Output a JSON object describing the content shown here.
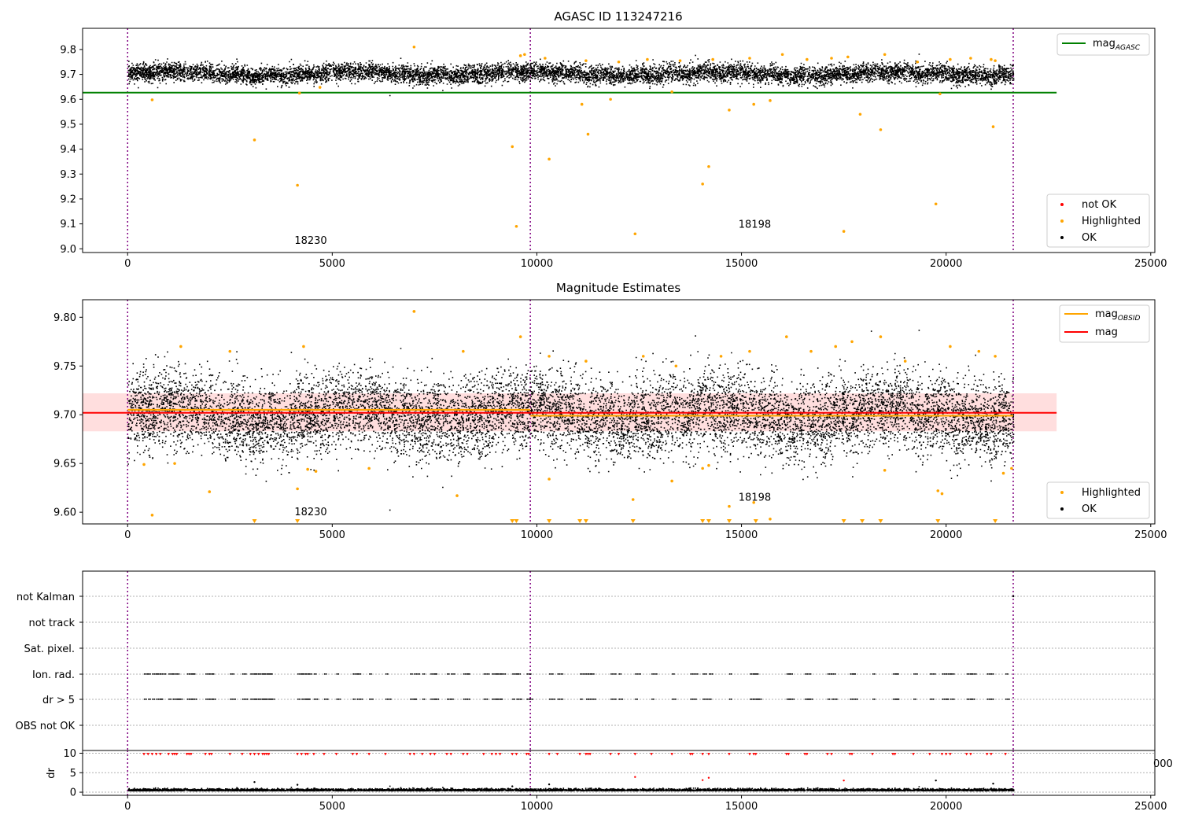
{
  "chart_data": [
    {
      "type": "scatter",
      "title": "AGASC ID 113247216",
      "xlabel": "",
      "ylabel": "",
      "xlim": [
        -1100,
        25100
      ],
      "ylim": [
        8.985,
        9.885
      ],
      "xticks": [
        0,
        5000,
        10000,
        15000,
        20000,
        25000
      ],
      "xtick_labels": [
        "0",
        "5000",
        "10000",
        "15000",
        "20000",
        "25000"
      ],
      "yticks": [
        9.0,
        9.1,
        9.2,
        9.3,
        9.4,
        9.5,
        9.6,
        9.7,
        9.8
      ],
      "ytick_labels": [
        "9.0",
        "9.1",
        "9.2",
        "9.3",
        "9.4",
        "9.5",
        "9.6",
        "9.7",
        "9.8"
      ],
      "obs_boundaries": [
        0,
        9840,
        21640
      ],
      "obsid_annotations": [
        {
          "x": 4500,
          "y": 9.02,
          "label": "18230"
        },
        {
          "x": 15350,
          "y": 9.085,
          "label": "18198"
        }
      ],
      "reference_lines": [
        {
          "label": "magAGASC",
          "y": 9.627,
          "color": "#008000"
        }
      ],
      "ok_band": {
        "x_start": 0,
        "x_end": 21640,
        "center": 9.705,
        "spread": 0.018,
        "color": "#000000"
      },
      "highlighted_points": {
        "color": "#ffa500",
        "x": [
          600,
          3100,
          4150,
          4200,
          4700,
          9400,
          10300,
          11100,
          11250,
          11800,
          12400,
          13300,
          14050,
          14200,
          14700,
          15300,
          15700,
          17500,
          17900,
          18400,
          19750,
          19850,
          21150,
          21200,
          7000,
          9500,
          9600,
          9700,
          10200,
          11200,
          12000,
          12700,
          13500,
          14300,
          15200,
          16000,
          16600,
          17200,
          17600,
          18500,
          19300,
          20100,
          20600,
          21100
        ],
        "y": [
          9.598,
          9.437,
          9.255,
          9.625,
          9.648,
          9.41,
          9.36,
          9.58,
          9.46,
          9.6,
          9.06,
          9.63,
          9.26,
          9.33,
          9.557,
          9.58,
          9.595,
          9.07,
          9.54,
          9.478,
          9.18,
          9.622,
          9.49,
          9.755,
          9.81,
          9.09,
          9.775,
          9.78,
          9.765,
          9.755,
          9.75,
          9.76,
          9.755,
          9.76,
          9.765,
          9.78,
          9.76,
          9.765,
          9.77,
          9.78,
          9.75,
          9.76,
          9.765,
          9.76
        ]
      },
      "legend": {
        "placement": "top-right",
        "entries": [
          {
            "label_main": "mag",
            "label_sub": "AGASC",
            "color": "#008000",
            "marker": "line"
          }
        ]
      },
      "legend2": {
        "placement": "lower-right",
        "entries": [
          {
            "label": "not OK",
            "color": "#ff0000",
            "marker": "dot"
          },
          {
            "label": "Highlighted",
            "color": "#ffa500",
            "marker": "dot"
          },
          {
            "label": "OK",
            "color": "#000000",
            "marker": "dot"
          }
        ]
      }
    },
    {
      "type": "scatter",
      "title": "Magnitude Estimates",
      "xlabel": "",
      "ylabel": "",
      "xlim": [
        -1100,
        25100
      ],
      "ylim": [
        9.588,
        9.818
      ],
      "xticks": [
        0,
        5000,
        10000,
        15000,
        20000,
        25000
      ],
      "xtick_labels": [
        "0",
        "5000",
        "10000",
        "15000",
        "20000",
        "25000"
      ],
      "yticks": [
        9.6,
        9.65,
        9.7,
        9.75,
        9.8
      ],
      "ytick_labels": [
        "9.60",
        "9.65",
        "9.70",
        "9.75",
        "9.80"
      ],
      "obs_boundaries": [
        0,
        9840,
        21640
      ],
      "obsid_annotations": [
        {
          "x": 4500,
          "y": 9.597,
          "label": "18230"
        },
        {
          "x": 15350,
          "y": 9.612,
          "label": "18198"
        }
      ],
      "mag_band": {
        "x_start": -1100,
        "x_end": 22700,
        "center": 9.702,
        "low": 9.683,
        "high": 9.722,
        "color": "#ff0000"
      },
      "obsid_mean_segments": [
        {
          "x_start": 0,
          "x_end": 9840,
          "y": 9.705
        },
        {
          "x_start": 9840,
          "x_end": 21640,
          "y": 9.699
        }
      ],
      "ok_band": {
        "x_start": 0,
        "x_end": 21640,
        "center": 9.7,
        "spread": 0.02,
        "color": "#000000"
      },
      "highlighted_points": {
        "color": "#ffa500",
        "x": [
          400,
          600,
          1150,
          2000,
          4150,
          4400,
          4600,
          5900,
          7000,
          8050,
          10300,
          12350,
          13300,
          14050,
          14200,
          14700,
          15300,
          15700,
          18500,
          19800,
          19900,
          21400,
          21600,
          1300,
          2500,
          4300,
          7000,
          8200,
          9600,
          10300,
          11200,
          12600,
          13400,
          14500,
          15200,
          16100,
          16700,
          17300,
          17700,
          18400,
          19000,
          20100,
          20800,
          21200
        ],
        "y": [
          9.649,
          9.597,
          9.65,
          9.621,
          9.624,
          9.644,
          9.642,
          9.645,
          9.806,
          9.617,
          9.634,
          9.613,
          9.632,
          9.645,
          9.648,
          9.606,
          9.61,
          9.593,
          9.643,
          9.622,
          9.619,
          9.64,
          9.645,
          9.77,
          9.765,
          9.77,
          9.806,
          9.765,
          9.78,
          9.76,
          9.755,
          9.76,
          9.75,
          9.76,
          9.765,
          9.78,
          9.765,
          9.77,
          9.775,
          9.78,
          9.755,
          9.77,
          9.765,
          9.76
        ]
      },
      "clipped_markers": {
        "color": "#ffa500",
        "x": [
          3100,
          4150,
          9400,
          9500,
          10300,
          11050,
          11200,
          12350,
          14050,
          14200,
          14700,
          15350,
          17500,
          17950,
          18400,
          19800,
          21200
        ]
      },
      "legend": {
        "placement": "top-right",
        "entries": [
          {
            "label_main": "mag",
            "label_sub": "OBSID",
            "color": "#ffa500",
            "marker": "line"
          },
          {
            "label_main": "mag",
            "label_sub": "",
            "color": "#ff0000",
            "marker": "line"
          }
        ]
      },
      "legend2": {
        "placement": "lower-right",
        "entries": [
          {
            "label": "Highlighted",
            "color": "#ffa500",
            "marker": "dot"
          },
          {
            "label": "OK",
            "color": "#000000",
            "marker": "dot"
          }
        ]
      }
    },
    {
      "type": "scatter",
      "title": "",
      "xlabel": "",
      "ylabel": "",
      "xlim": [
        -1100,
        25100
      ],
      "categories": [
        "not Kalman",
        "not track",
        "Sat. pixel.",
        "Ion. rad.",
        "dr > 5",
        "OBS not OK"
      ],
      "obs_boundaries": [
        0,
        9840,
        21640
      ],
      "flag_x": [
        400,
        500,
        600,
        700,
        800,
        1000,
        1100,
        1150,
        1200,
        1450,
        1500,
        1550,
        1900,
        2000,
        2050,
        2500,
        2800,
        3000,
        3100,
        3200,
        3300,
        3350,
        3400,
        3450,
        4150,
        4250,
        4350,
        4400,
        4550,
        4800,
        5100,
        5500,
        5600,
        5900,
        6300,
        6900,
        7000,
        7200,
        7400,
        7500,
        7800,
        7900,
        8200,
        8300,
        8700,
        8900,
        9000,
        9100,
        9400,
        9500,
        9750,
        9800,
        10300,
        10500,
        11050,
        11200,
        11250,
        11300,
        11800,
        12000,
        12400,
        12800,
        13300,
        13750,
        13800,
        14050,
        14200,
        14700,
        15200,
        15300,
        15350,
        16100,
        16150,
        16550,
        16600,
        17100,
        17200,
        17650,
        17700,
        18200,
        18700,
        18750,
        19200,
        19600,
        19900,
        20000,
        20100,
        20500,
        20600,
        21000,
        21100,
        21450
      ],
      "kalman_points": {
        "x": [
          21640
        ],
        "label": "not Kalman"
      },
      "extra_tick": "000",
      "sub_panel": {
        "ylabel": "dr",
        "ylim": [
          -0.8,
          10.7
        ],
        "yticks": [
          0,
          5,
          10
        ],
        "ytick_labels": [
          "0",
          "5",
          "10"
        ],
        "xticks": [
          0,
          5000,
          10000,
          15000,
          20000,
          25000
        ],
        "xtick_labels": [
          "0",
          "5000",
          "10000",
          "15000",
          "20000",
          "25000"
        ],
        "ok_band": {
          "x_start": 0,
          "x_end": 21640,
          "center": 0.5,
          "spread": 0.25
        },
        "outliers": {
          "color_not_ok": "#ff0000",
          "color_ok": "#000000",
          "not_ok_x": [
            12400,
            14050,
            14200,
            17500
          ],
          "not_ok_y": [
            3.9,
            3.1,
            3.7,
            3.0
          ],
          "ok_x": [
            3100,
            4150,
            9400,
            10300,
            19750,
            21150
          ],
          "ok_y": [
            2.6,
            1.9,
            1.5,
            2.0,
            3.0,
            2.2
          ]
        },
        "clipped_markers_color": "#ff0000"
      }
    }
  ]
}
